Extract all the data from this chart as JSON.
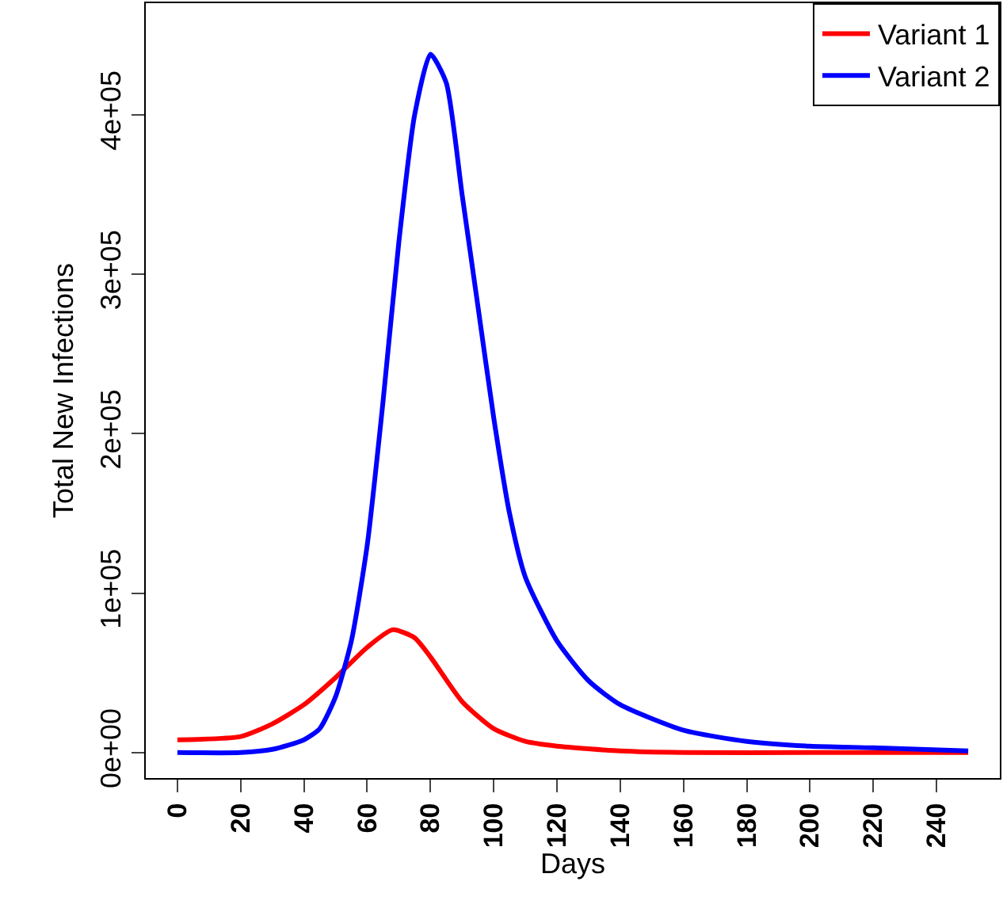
{
  "chart_data": {
    "type": "line",
    "xlabel": "Days",
    "ylabel": "Total New Infections",
    "xlim": [
      -10,
      260
    ],
    "ylim": [
      -16000,
      470000
    ],
    "xticks": [
      0,
      20,
      40,
      60,
      80,
      100,
      120,
      140,
      160,
      180,
      200,
      220,
      240
    ],
    "yticks": [
      {
        "value": 0,
        "label": "0e+00"
      },
      {
        "value": 100000,
        "label": "1e+05"
      },
      {
        "value": 200000,
        "label": "2e+05"
      },
      {
        "value": 300000,
        "label": "3e+05"
      },
      {
        "value": 400000,
        "label": "4e+05"
      }
    ],
    "legend": "top right",
    "line_style": "solid",
    "series": [
      {
        "name": "Variant 1",
        "color": "#ff0000",
        "x": [
          0,
          20,
          30,
          40,
          50,
          60,
          68,
          75,
          80,
          90,
          100,
          110,
          120,
          140,
          160,
          200,
          250
        ],
        "values": [
          8000,
          10000,
          18000,
          30000,
          47000,
          66000,
          77000,
          72000,
          60000,
          32000,
          15000,
          7000,
          4000,
          1000,
          0,
          0,
          0
        ]
      },
      {
        "name": "Variant 2",
        "color": "#0000ff",
        "x": [
          0,
          20,
          30,
          40,
          45,
          50,
          55,
          60,
          65,
          70,
          75,
          80,
          85,
          90,
          95,
          100,
          105,
          110,
          120,
          130,
          140,
          160,
          180,
          200,
          220,
          250
        ],
        "values": [
          0,
          0,
          2000,
          8000,
          15000,
          35000,
          70000,
          130000,
          220000,
          320000,
          400000,
          438000,
          420000,
          350000,
          280000,
          210000,
          150000,
          110000,
          70000,
          45000,
          30000,
          14000,
          7000,
          4000,
          3000,
          1000
        ]
      }
    ]
  }
}
